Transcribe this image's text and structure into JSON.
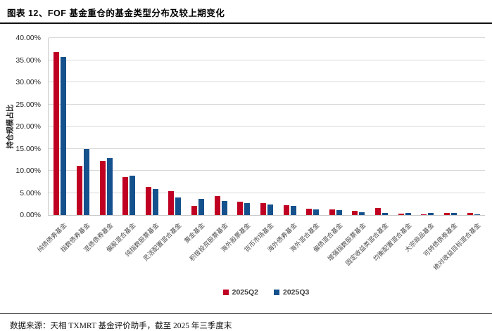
{
  "title": "图表 12、FOF 基金重仓的基金类型分布及较上期变化",
  "source_note": "数据来源：天相 TXMRT 基金评价助手，截至 2025 年三季度末",
  "colors": {
    "q2_red": "#C00023",
    "q3_blue": "#15518C",
    "gridline": "#D9D9D9"
  },
  "chart_data": {
    "type": "bar",
    "title": "图表 12、FOF 基金重仓的基金类型分布及较上期变化",
    "xlabel": "",
    "ylabel": "持仓规模占比",
    "ylim": [
      0,
      40
    ],
    "ytick_step": 5,
    "ytick_labels": [
      "0.00%",
      "5.00%",
      "10.00%",
      "15.00%",
      "20.00%",
      "25.00%",
      "30.00%",
      "35.00%",
      "40.00%"
    ],
    "grid": true,
    "legend_position": "bottom",
    "categories": [
      "纯债债券基金",
      "指数债券基金",
      "混债债券基金",
      "偏股混合基金",
      "纯指数股票基金",
      "灵活配置混合基金",
      "黄金基金",
      "积极投资股票基金",
      "海外股票基金",
      "货币市场基金",
      "海外债券基金",
      "海外混合基金",
      "偏债混合基金",
      "增强指数股票基金",
      "固定收益类混合基金",
      "均衡配置混合基金",
      "大宗商品基金",
      "可转债债券基金",
      "绝对收益目标混合基金"
    ],
    "series": [
      {
        "name": "2025Q2",
        "color": "#C00023",
        "values": [
          36.9,
          11.1,
          12.3,
          8.6,
          6.3,
          5.4,
          2.0,
          4.3,
          3.0,
          2.7,
          2.3,
          1.4,
          1.2,
          0.9,
          1.6,
          0.3,
          0.1,
          0.5,
          0.4
        ]
      },
      {
        "name": "2025Q3",
        "color": "#15518C",
        "values": [
          35.7,
          14.9,
          12.8,
          8.9,
          5.8,
          3.9,
          3.6,
          3.2,
          2.7,
          2.4,
          2.0,
          1.3,
          1.1,
          0.6,
          0.4,
          0.5,
          0.4,
          0.4,
          0.1
        ]
      }
    ]
  }
}
